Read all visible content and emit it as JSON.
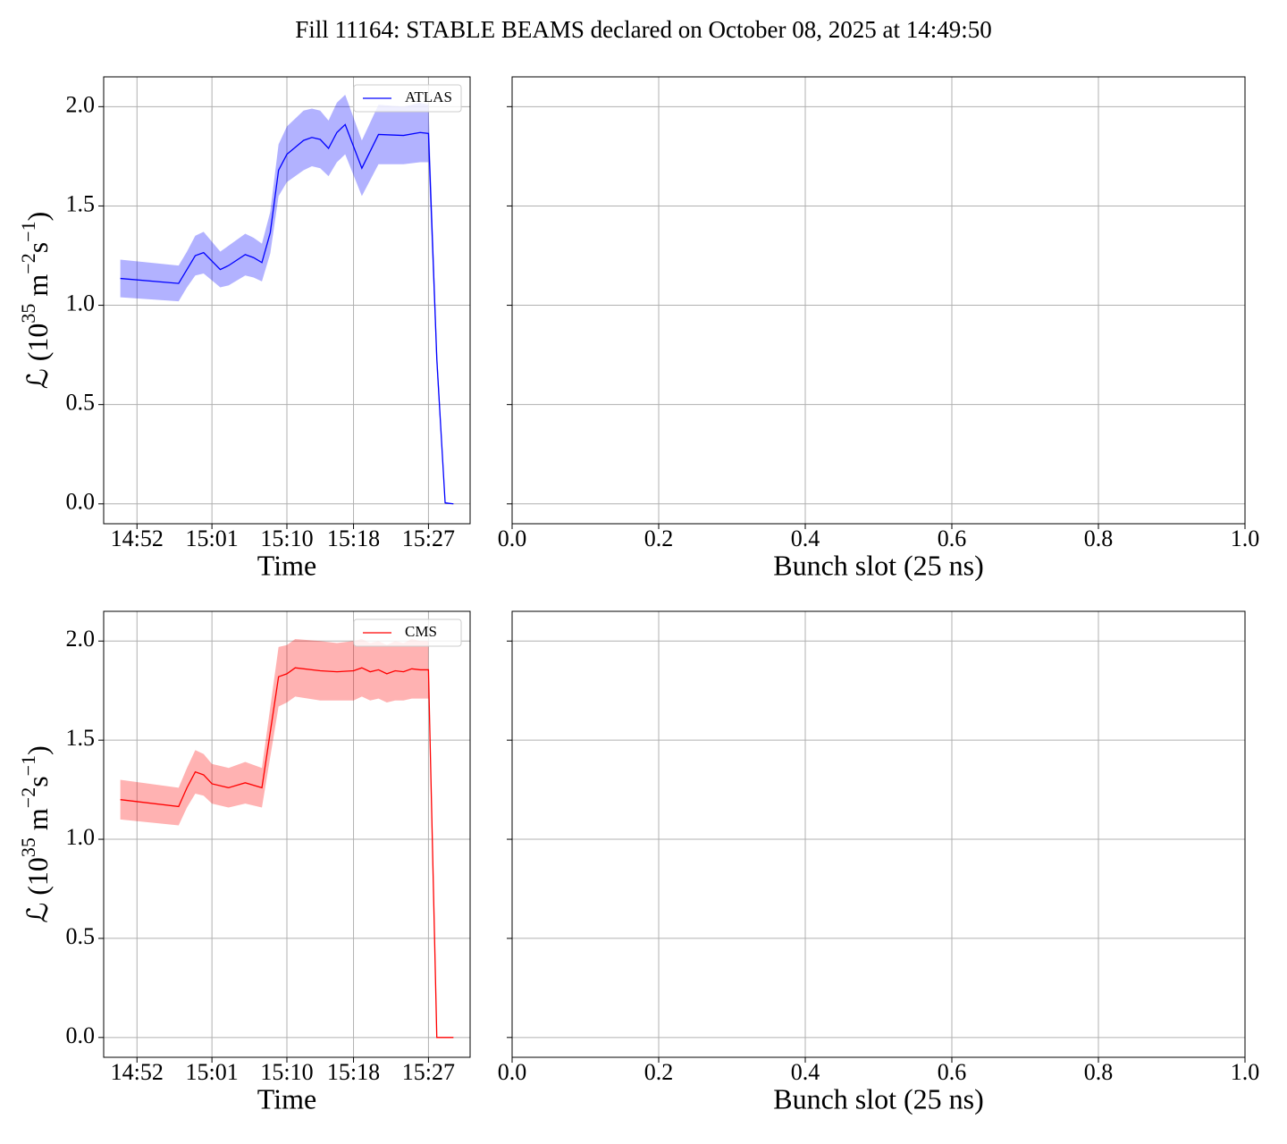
{
  "title": "Fill 11164: STABLE BEAMS declared on October 08, 2025 at 14:49:50",
  "chart_data": [
    {
      "type": "line",
      "xlabel": "Time",
      "ylabel": [
        "ℒ (10",
        "35",
        " m",
        "−2",
        "s",
        "−1",
        ")"
      ],
      "x": [
        "14:50",
        "14:57",
        "14:58",
        "14:59",
        "15:00",
        "15:02",
        "15:03",
        "15:05",
        "15:06",
        "15:07",
        "15:08",
        "15:09",
        "15:10",
        "15:12",
        "15:13",
        "15:14",
        "15:15",
        "15:16",
        "15:17",
        "15:19",
        "15:21",
        "15:24",
        "15:26",
        "15:27",
        "15:28",
        "15:29",
        "15:30"
      ],
      "series": [
        {
          "name": "ATLAS",
          "color": "#0000ff",
          "values": [
            1.135,
            1.11,
            1.18,
            1.25,
            1.265,
            1.18,
            1.2,
            1.255,
            1.24,
            1.215,
            1.365,
            1.68,
            1.76,
            1.83,
            1.845,
            1.835,
            1.79,
            1.87,
            1.91,
            1.69,
            1.86,
            1.855,
            1.87,
            1.865,
            0.73,
            0.005,
            0.0
          ],
          "lower": [
            1.04,
            1.02,
            1.09,
            1.15,
            1.16,
            1.09,
            1.1,
            1.15,
            1.14,
            1.12,
            1.26,
            1.55,
            1.62,
            1.68,
            1.7,
            1.69,
            1.65,
            1.72,
            1.76,
            1.55,
            1.71,
            1.71,
            1.72,
            1.72,
            0.67,
            0.0,
            0.0
          ],
          "upper": [
            1.23,
            1.2,
            1.27,
            1.35,
            1.37,
            1.27,
            1.3,
            1.36,
            1.34,
            1.31,
            1.47,
            1.81,
            1.9,
            1.98,
            1.99,
            1.98,
            1.93,
            2.02,
            2.06,
            1.83,
            2.01,
            2.0,
            2.02,
            2.01,
            0.79,
            0.01,
            0.0
          ]
        }
      ],
      "xlim": [
        "14:48",
        "15:32"
      ],
      "xticks": [
        "14:52",
        "15:01",
        "15:10",
        "15:18",
        "15:27"
      ],
      "ylim": [
        -0.1,
        2.15
      ],
      "yticks": [
        {
          "value": 0,
          "label": "0.0"
        },
        0.5,
        {
          "value": 1,
          "label": "1.0"
        },
        1.5,
        {
          "value": 2,
          "label": "2.0"
        }
      ],
      "grid": true,
      "legend": "upper right"
    },
    {
      "type": "line",
      "xlabel": "Bunch slot (25 ns)",
      "series": [],
      "xlim": [
        0,
        1
      ],
      "xticks": [
        {
          "value": 0,
          "label": "0.0"
        },
        0.2,
        0.4,
        0.6,
        0.8,
        {
          "value": 1,
          "label": "1.0"
        }
      ],
      "ylim": [
        -0.1,
        2.15
      ],
      "yticks": [
        0,
        0.5,
        1,
        1.5,
        2
      ],
      "ytick_labels": false,
      "grid": true
    },
    {
      "type": "line",
      "xlabel": "Time",
      "ylabel": [
        "ℒ (10",
        "35",
        " m",
        "−2",
        "s",
        "−1",
        ")"
      ],
      "x": [
        "14:50",
        "14:57",
        "14:58",
        "14:59",
        "15:00",
        "15:01",
        "15:03",
        "15:05",
        "15:07",
        "15:09",
        "15:10",
        "15:11",
        "15:14",
        "15:16",
        "15:18",
        "15:19",
        "15:20",
        "15:21",
        "15:22",
        "15:23",
        "15:24",
        "15:25",
        "15:26",
        "15:27",
        "15:28",
        "15:30"
      ],
      "series": [
        {
          "name": "CMS",
          "color": "#ff0000",
          "values": [
            1.2,
            1.165,
            1.26,
            1.34,
            1.325,
            1.28,
            1.26,
            1.285,
            1.26,
            1.82,
            1.835,
            1.865,
            1.85,
            1.845,
            1.85,
            1.865,
            1.845,
            1.855,
            1.835,
            1.85,
            1.845,
            1.86,
            1.855,
            1.855,
            0.0,
            0.0
          ],
          "lower": [
            1.1,
            1.07,
            1.16,
            1.23,
            1.22,
            1.18,
            1.16,
            1.18,
            1.16,
            1.67,
            1.69,
            1.72,
            1.7,
            1.7,
            1.7,
            1.72,
            1.7,
            1.71,
            1.69,
            1.7,
            1.7,
            1.71,
            1.71,
            1.71,
            null,
            null
          ],
          "upper": [
            1.3,
            1.26,
            1.36,
            1.45,
            1.43,
            1.38,
            1.36,
            1.39,
            1.36,
            1.97,
            1.98,
            2.01,
            2.0,
            1.99,
            2.0,
            2.01,
            1.99,
            2.0,
            1.98,
            2.0,
            1.99,
            2.01,
            2.0,
            2.0,
            null,
            null
          ]
        }
      ],
      "xlim": [
        "14:48",
        "15:32"
      ],
      "xticks": [
        "14:52",
        "15:01",
        "15:10",
        "15:18",
        "15:27"
      ],
      "ylim": [
        -0.1,
        2.15
      ],
      "yticks": [
        {
          "value": 0,
          "label": "0.0"
        },
        0.5,
        {
          "value": 1,
          "label": "1.0"
        },
        1.5,
        {
          "value": 2,
          "label": "2.0"
        }
      ],
      "grid": true,
      "legend": "upper right"
    },
    {
      "type": "line",
      "xlabel": "Bunch slot (25 ns)",
      "series": [],
      "xlim": [
        0,
        1
      ],
      "xticks": [
        {
          "value": 0,
          "label": "0.0"
        },
        0.2,
        0.4,
        0.6,
        0.8,
        {
          "value": 1,
          "label": "1.0"
        }
      ],
      "ylim": [
        -0.1,
        2.15
      ],
      "yticks": [
        0,
        0.5,
        1,
        1.5,
        2
      ],
      "ytick_labels": false,
      "grid": true
    }
  ]
}
